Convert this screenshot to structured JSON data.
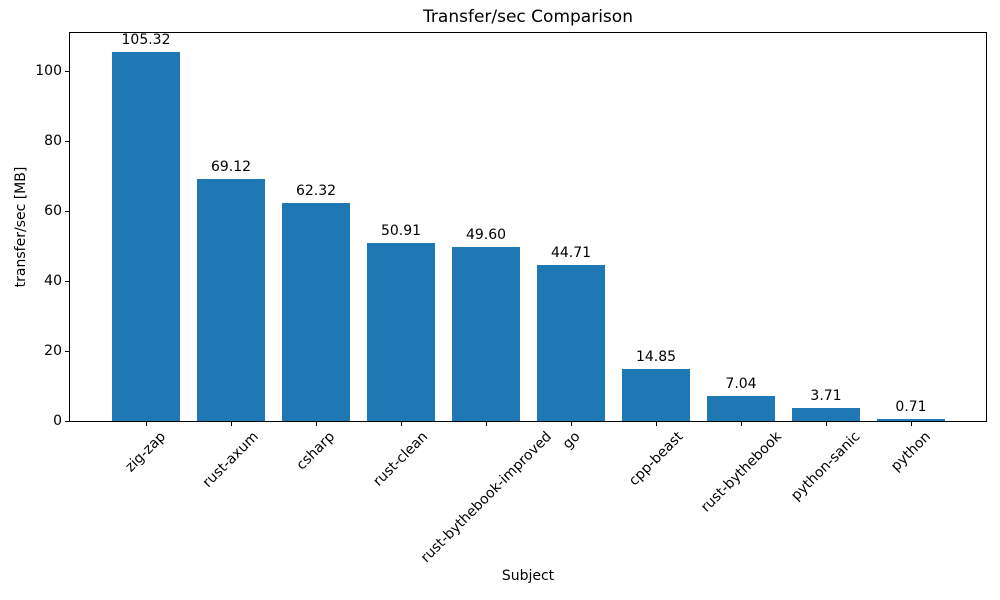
{
  "chart_data": {
    "type": "bar",
    "title": "Transfer/sec Comparison",
    "xlabel": "Subject",
    "ylabel": "transfer/sec [MB]",
    "categories": [
      "zig-zap",
      "rust-axum",
      "csharp",
      "rust-clean",
      "rust-bythebook-improved",
      "go",
      "cpp-beast",
      "rust-bythebook",
      "python-sanic",
      "python"
    ],
    "values": [
      105.32,
      69.12,
      62.32,
      50.91,
      49.6,
      44.71,
      14.85,
      7.04,
      3.71,
      0.71
    ],
    "bar_labels": [
      "105.32",
      "69.12",
      "62.32",
      "50.91",
      "49.60",
      "44.71",
      "14.85",
      "7.04",
      "3.71",
      "0.71"
    ],
    "yticks": [
      0,
      20,
      40,
      60,
      80,
      100
    ],
    "ylim": [
      0,
      110.86
    ],
    "xtick_rotation_deg": 45,
    "grid": false,
    "legend": false,
    "bar_color": "#1f77b4",
    "text_color": "#000000",
    "spine_color": "#000000",
    "background_color": "#ffffff"
  }
}
